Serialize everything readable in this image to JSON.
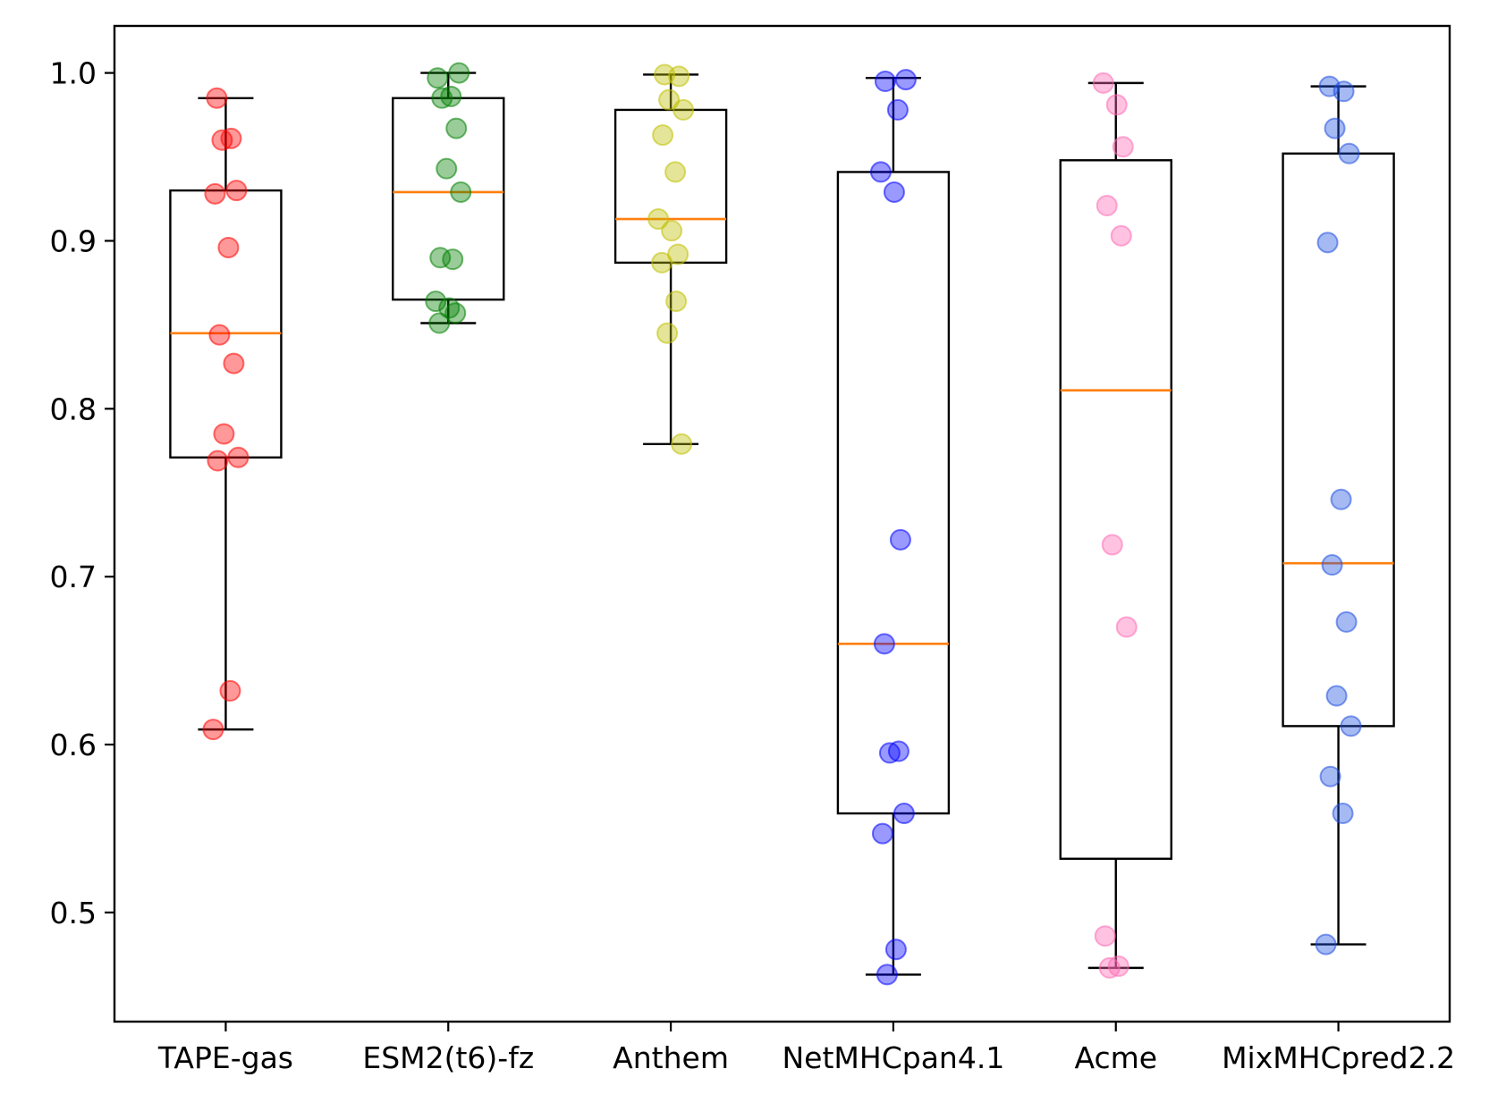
{
  "chart_data": {
    "type": "box",
    "title": "",
    "xlabel": "",
    "ylabel": "",
    "ylim": [
      0.435,
      1.028
    ],
    "yticks": [
      "0.5",
      "0.6",
      "0.7",
      "0.8",
      "0.9",
      "1.0"
    ],
    "grid": false,
    "legend": "none",
    "categories": [
      "TAPE-gas",
      "ESM2(t6)-fz",
      "Anthem",
      "NetMHCpan4.1",
      "Acme",
      "MixMHCpred2.2"
    ],
    "boxes": [
      {
        "whisker_low": 0.609,
        "q1": 0.771,
        "median": 0.845,
        "q3": 0.93,
        "whisker_high": 0.985,
        "color": "#ff0000",
        "points": [
          0.985,
          0.961,
          0.96,
          0.93,
          0.928,
          0.896,
          0.844,
          0.827,
          0.785,
          0.771,
          0.769,
          0.632,
          0.609
        ]
      },
      {
        "whisker_low": 0.851,
        "q1": 0.865,
        "median": 0.929,
        "q3": 0.985,
        "whisker_high": 1.0,
        "color": "#008000",
        "points": [
          1.0,
          0.997,
          0.986,
          0.985,
          0.967,
          0.943,
          0.929,
          0.89,
          0.889,
          0.864,
          0.86,
          0.857,
          0.851
        ]
      },
      {
        "whisker_low": 0.779,
        "q1": 0.887,
        "median": 0.913,
        "q3": 0.978,
        "whisker_high": 0.999,
        "color": "#bfbf00",
        "points": [
          0.999,
          0.998,
          0.984,
          0.978,
          0.963,
          0.941,
          0.913,
          0.906,
          0.892,
          0.887,
          0.864,
          0.845,
          0.779
        ]
      },
      {
        "whisker_low": 0.463,
        "q1": 0.559,
        "median": 0.66,
        "q3": 0.941,
        "whisker_high": 0.997,
        "color": "#0000ff",
        "points": [
          0.996,
          0.995,
          0.978,
          0.941,
          0.929,
          0.722,
          0.66,
          0.596,
          0.595,
          0.559,
          0.547,
          0.478,
          0.463
        ]
      },
      {
        "whisker_low": 0.467,
        "q1": 0.532,
        "median": 0.811,
        "q3": 0.948,
        "whisker_high": 0.994,
        "color": "#ff69b4",
        "points": [
          0.994,
          0.981,
          0.956,
          0.921,
          0.903,
          0.719,
          0.67,
          0.486,
          0.468,
          0.467
        ]
      },
      {
        "whisker_low": 0.481,
        "q1": 0.611,
        "median": 0.708,
        "q3": 0.952,
        "whisker_high": 0.992,
        "color": "#1f4fe0",
        "points": [
          0.992,
          0.989,
          0.967,
          0.952,
          0.899,
          0.746,
          0.707,
          0.673,
          0.629,
          0.611,
          0.581,
          0.559,
          0.481
        ]
      }
    ]
  }
}
